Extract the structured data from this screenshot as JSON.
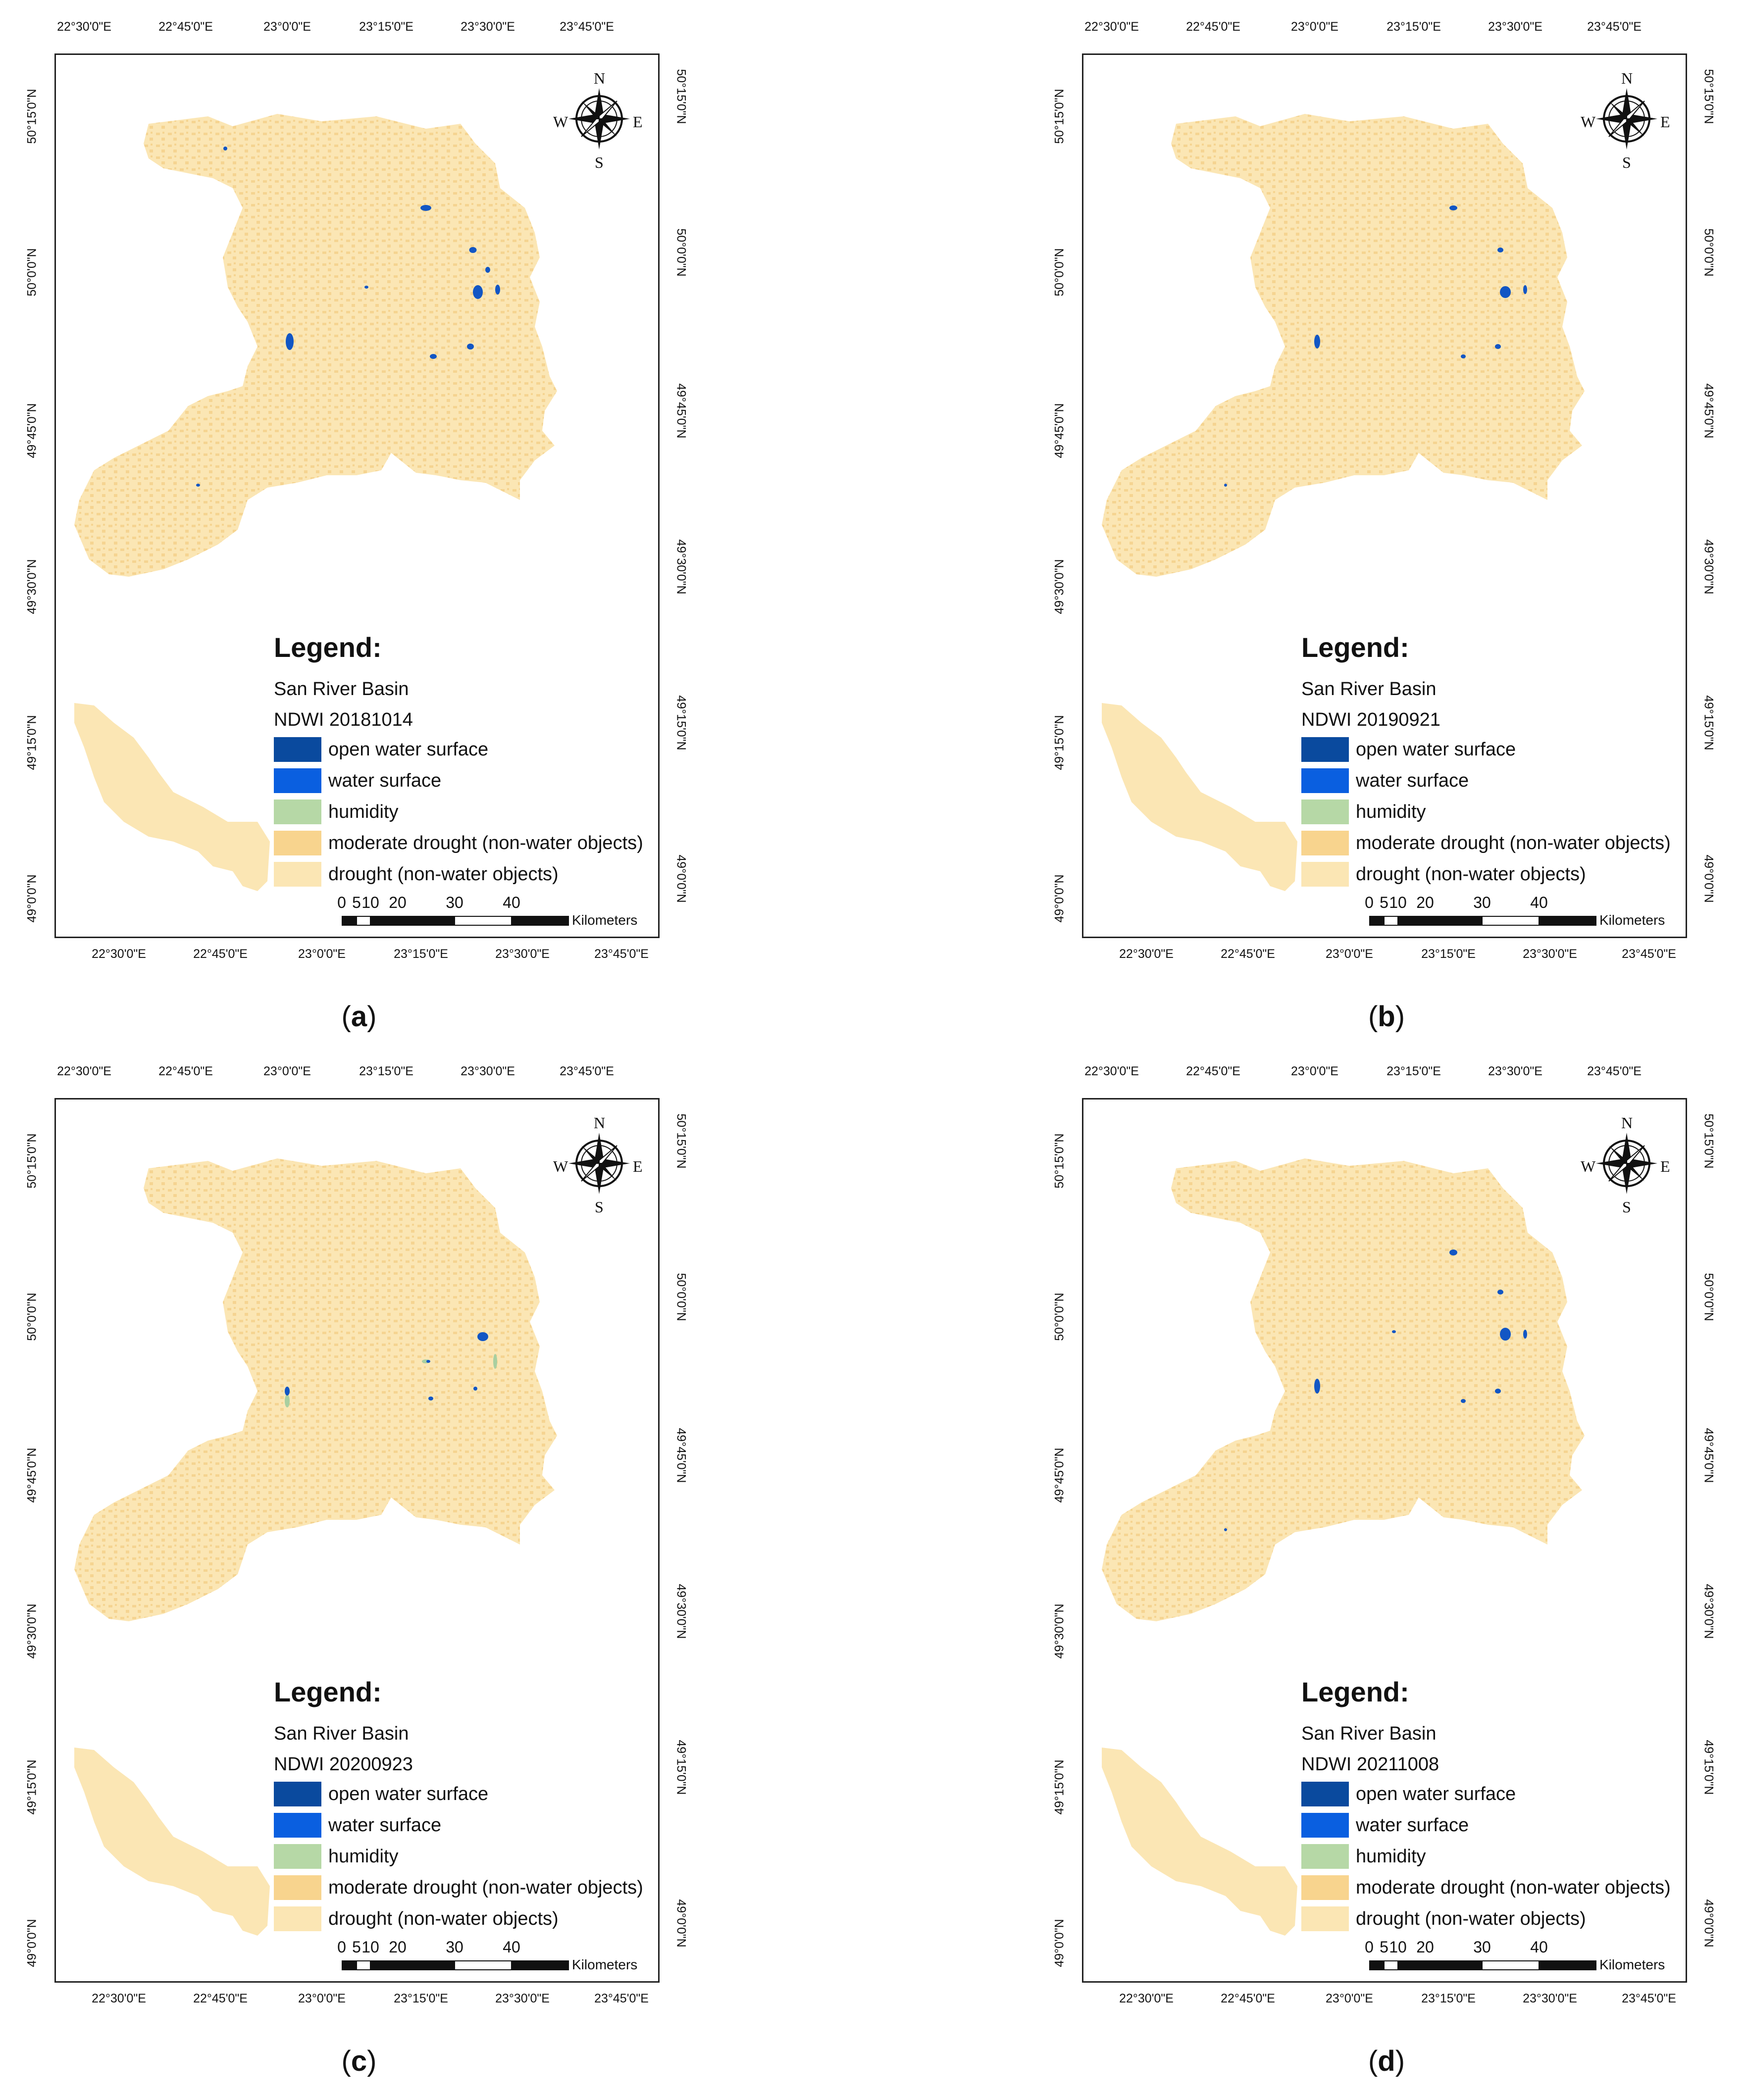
{
  "lon_labels_top": [
    "22°30'0\"E",
    "22°45'0\"E",
    "23°0'0\"E",
    "23°15'0\"E",
    "23°30'0\"E",
    "23°45'0\"E"
  ],
  "lon_labels_bottom": [
    "22°30'0\"E",
    "22°45'0\"E",
    "23°0'0\"E",
    "23°15'0\"E",
    "23°30'0\"E",
    "23°45'0\"E"
  ],
  "lat_labels": [
    "50°15'0\"N",
    "50°0'0\"N",
    "49°45'0\"N",
    "49°30'0\"N",
    "49°15'0\"N",
    "49°0'0\"N"
  ],
  "compass": {
    "n": "N",
    "s": "S",
    "e": "E",
    "w": "W"
  },
  "legend": {
    "title": "Legend:",
    "basin": "San River Basin",
    "items": [
      {
        "label": "open water surface",
        "color": "#0a4a9e"
      },
      {
        "label": "water surface",
        "color": "#0a5fe0"
      },
      {
        "label": "humidity",
        "color": "#b6d8a6"
      },
      {
        "label": "moderate drought (non-water objects)",
        "color": "#f8d48e"
      },
      {
        "label": "drought (non-water objects)",
        "color": "#fbe6b4"
      }
    ]
  },
  "scale": {
    "ticks": [
      "0",
      "5",
      "10",
      "20",
      "30",
      "40"
    ],
    "unit": "Kilometers"
  },
  "panels": [
    {
      "id": "a",
      "ndwi": "NDWI  20181014",
      "caption_open": "(",
      "caption_letter": "a",
      "caption_close": ")"
    },
    {
      "id": "b",
      "ndwi": "NDWI 20190921",
      "caption_open": "(",
      "caption_letter": "b",
      "caption_close": ")"
    },
    {
      "id": "c",
      "ndwi": "NDWI  20200923",
      "caption_open": "(",
      "caption_letter": "c",
      "caption_close": ")"
    },
    {
      "id": "d",
      "ndwi": "NDWI  20211008",
      "caption_open": "(",
      "caption_letter": "d",
      "caption_close": ")"
    }
  ],
  "colors": {
    "drought": "#fbe6b4",
    "moderate": "#f5d491",
    "water": "#1256c4",
    "open_water": "#0a3e8f",
    "humidity": "#a9cfa0"
  }
}
